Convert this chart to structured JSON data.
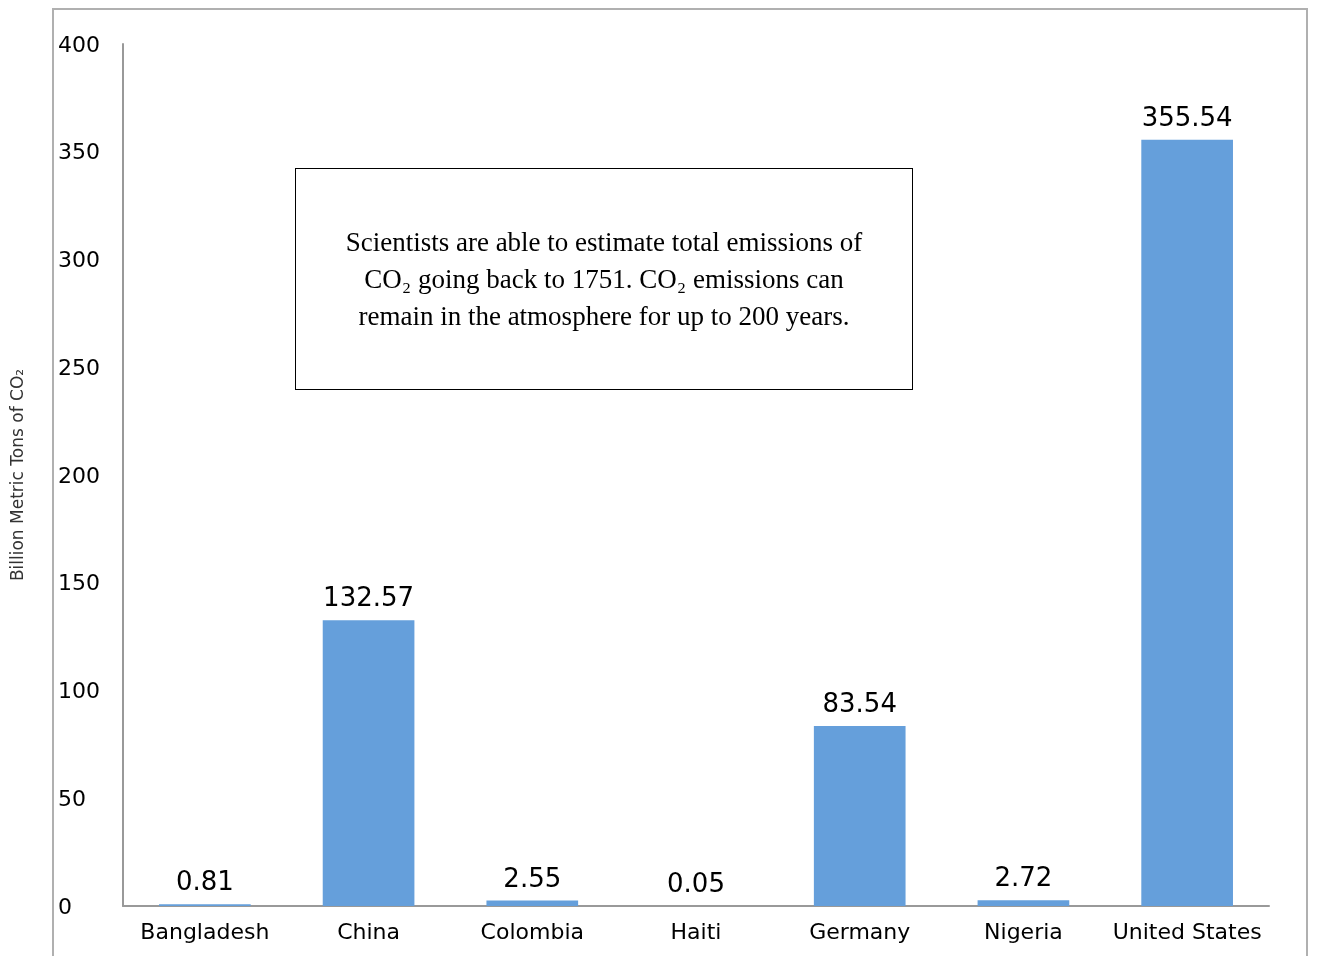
{
  "chart_data": {
    "type": "bar",
    "ylabel": "Billion Metric Tons of CO₂",
    "categories": [
      "Bangladesh",
      "China",
      "Colombia",
      "Haiti",
      "Germany",
      "Nigeria",
      "United States"
    ],
    "values": [
      0.81,
      132.57,
      2.55,
      0.05,
      83.54,
      2.72,
      355.54
    ],
    "color": "#659fdb",
    "ylim": [
      0,
      400
    ],
    "yticks": [
      0,
      50,
      100,
      150,
      200,
      250,
      300,
      350,
      400
    ],
    "grid": false,
    "data_labels": true,
    "annotations": [
      "Scientists are able to estimate total emissions of CO₂ going back to 1751. CO₂ emissions can remain in the atmosphere for up to 200 years."
    ]
  }
}
